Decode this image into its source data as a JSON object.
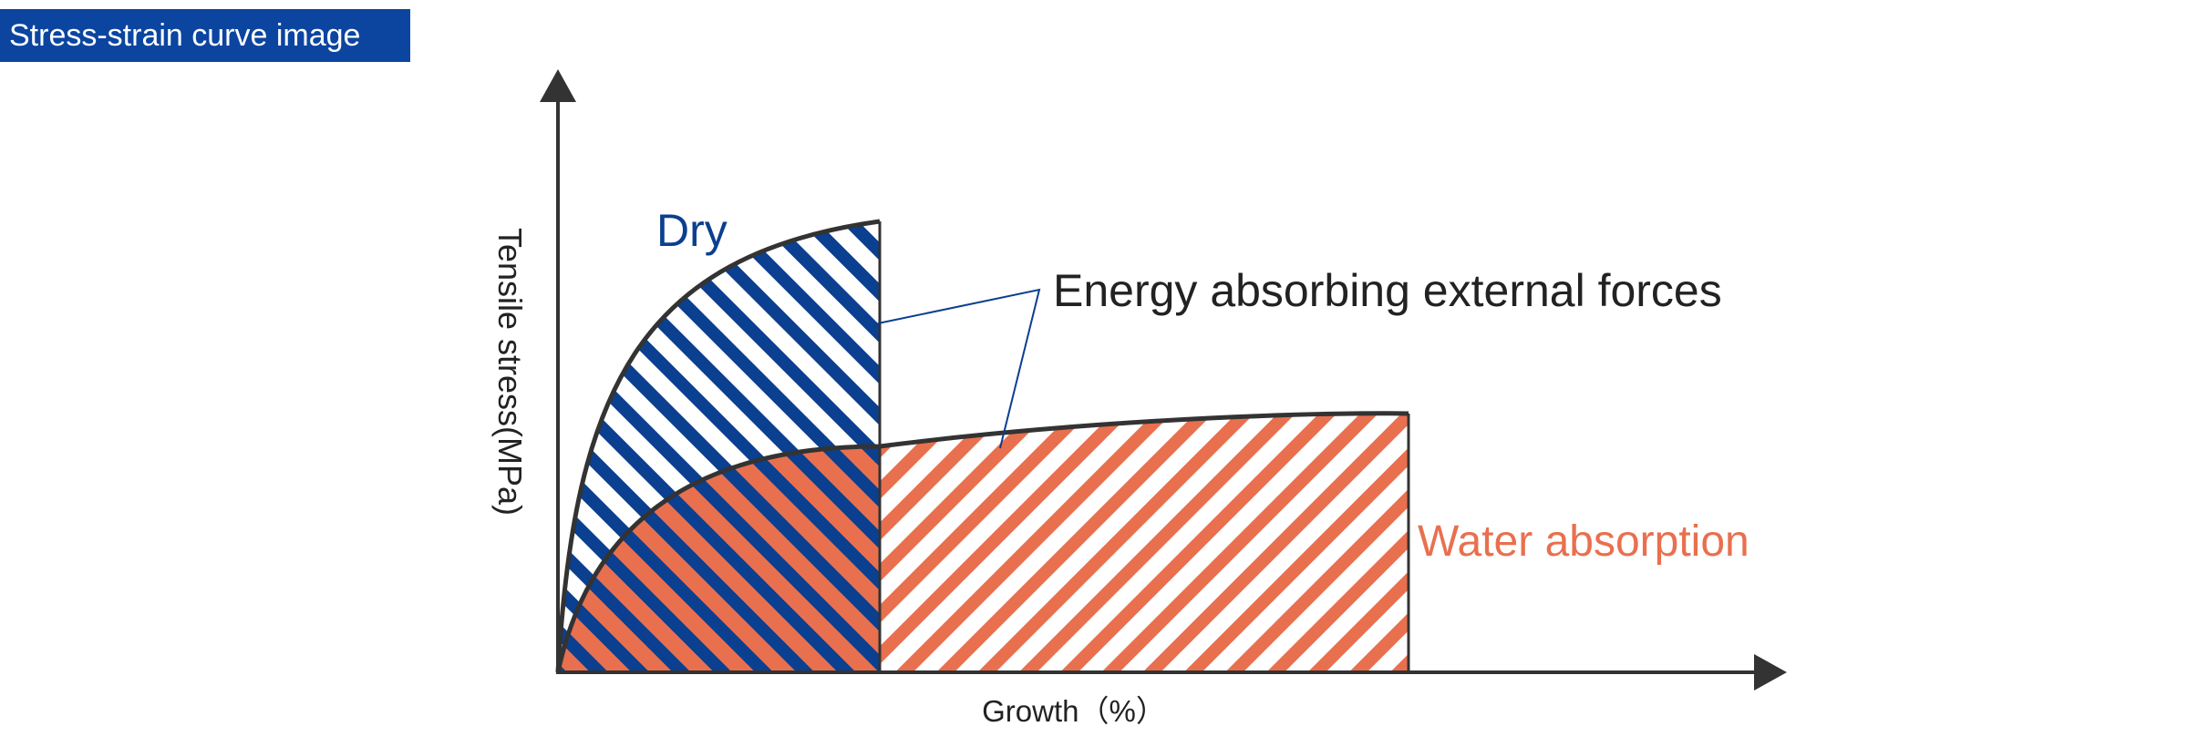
{
  "header": {
    "title": "Stress-strain curve image"
  },
  "diagram": {
    "y_axis_label": "Tensile stress(MPa)",
    "x_axis_label": "Growth（%）",
    "series": [
      {
        "name": "Dry",
        "color": "#0b3f8f"
      },
      {
        "name": "Water absorption",
        "color": "#e8704f"
      }
    ],
    "annotation": "Energy absorbing external forces",
    "colors": {
      "axis": "#333333",
      "curve": "#333333",
      "badge": "#0b45a0",
      "leader": "#0b3f8f"
    }
  }
}
